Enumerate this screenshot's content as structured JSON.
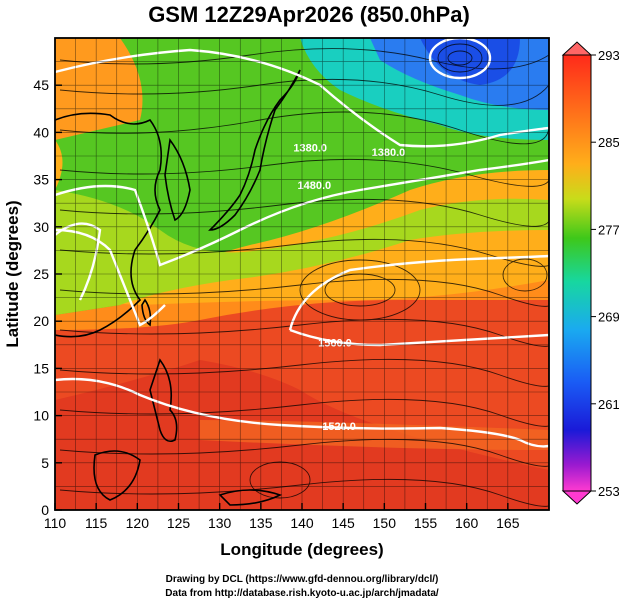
{
  "title": "GSM 12Z29Apr2026 (850.0hPa)",
  "x_axis": {
    "title": "Longitude (degrees)",
    "range": [
      110,
      170
    ],
    "ticks": [
      "110",
      "115",
      "120",
      "125",
      "130",
      "135",
      "140",
      "145",
      "150",
      "155",
      "160",
      "165"
    ],
    "tick_values": [
      110,
      115,
      120,
      125,
      130,
      135,
      140,
      145,
      150,
      155,
      160,
      165
    ]
  },
  "y_axis": {
    "title": "Latitude  (degrees)",
    "range": [
      0,
      50
    ],
    "ticks": [
      "0",
      "5",
      "10",
      "15",
      "20",
      "25",
      "30",
      "35",
      "40",
      "45"
    ],
    "tick_values": [
      0,
      5,
      10,
      15,
      20,
      25,
      30,
      35,
      40,
      45
    ]
  },
  "colorbar": {
    "labels": [
      "293",
      "285",
      "277",
      "269",
      "261",
      "253"
    ],
    "values": [
      293,
      285,
      277,
      269,
      261,
      253
    ],
    "range": [
      253,
      293
    ]
  },
  "contour_labels": [
    {
      "text": "1380.0",
      "lon": 141,
      "lat": 38
    },
    {
      "text": "1380.0",
      "lon": 150.5,
      "lat": 37.5
    },
    {
      "text": "1480.0",
      "lon": 141.5,
      "lat": 34
    },
    {
      "text": "1560.0",
      "lon": 144,
      "lat": 17.3
    },
    {
      "text": "1520.0",
      "lon": 144.5,
      "lat": 8.5
    }
  ],
  "credits": {
    "line1": "Drawing by DCL (https://www.gfd-dennou.org/library/dcl/)",
    "line2": "Data from http://database.rish.kyoto-u.ac.jp/arch/jmadata/"
  },
  "colors": {
    "warm": "#e8401e",
    "mid": "#ff8c1a",
    "cool": "#4fc31d",
    "cold": "#1f6cff",
    "contour": "#ffffff"
  }
}
